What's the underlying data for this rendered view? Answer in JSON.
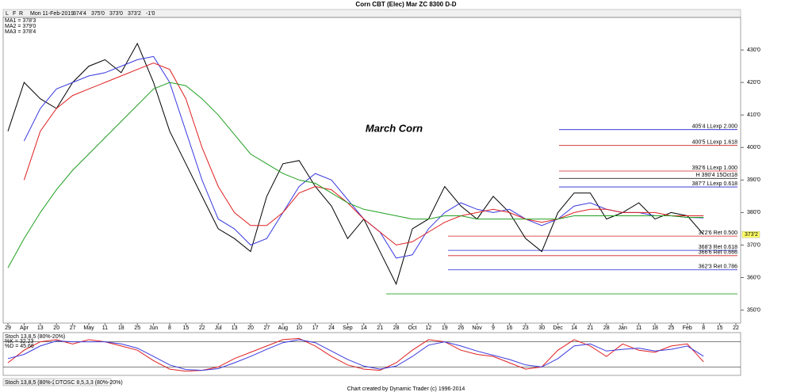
{
  "window_title": "Corn CBT (Elec) Mar ZC 8300 D-D",
  "toolbar": [
    "L",
    "F",
    "R"
  ],
  "quote": {
    "date": "Mon 11-Feb-2019",
    "open": "374'4",
    "high": "375'0",
    "low": "373'0",
    "close": "373'2",
    "change": "-1'0"
  },
  "footer": "Chart created by Dynamic Trader  (c) 1996-2014",
  "tabs": [
    "Stoch 13,8,5 (80%-20%)",
    "DTOSC 8,5,3,3 (80%-20%)"
  ],
  "chart_data": [
    {
      "type": "line",
      "annotation": "March Corn",
      "categories": [
        "29",
        "Apr",
        "13",
        "20",
        "27",
        "May",
        "11",
        "18",
        "25",
        "Jun",
        "8",
        "15",
        "22",
        "Jul",
        "13",
        "20",
        "27",
        "Aug",
        "10",
        "17",
        "24",
        "Sep",
        "14",
        "21",
        "28",
        "Oct",
        "12",
        "19",
        "26",
        "Nov",
        "9",
        "16",
        "23",
        "30",
        "Dec",
        "14",
        "21",
        "28",
        "Jan",
        "11",
        "18",
        "25",
        "Feb",
        "8",
        "15",
        "22"
      ],
      "ylim": [
        346,
        440
      ],
      "yticks": [
        {
          "value": 350,
          "label": "350'0"
        },
        {
          "value": 360,
          "label": "360'0"
        },
        {
          "value": 370,
          "label": "370'0"
        },
        {
          "value": 380,
          "label": "380'0"
        },
        {
          "value": 390,
          "label": "390'0"
        },
        {
          "value": 400,
          "label": "400'0"
        },
        {
          "value": 410,
          "label": "410'0"
        },
        {
          "value": 420,
          "label": "420'0"
        },
        {
          "value": 430,
          "label": "430'0"
        }
      ],
      "last": {
        "value": 373.25,
        "label": "373'2"
      },
      "series": [
        {
          "color": "#000000",
          "values": [
            405,
            420,
            415,
            412,
            420,
            425,
            427,
            423,
            432,
            420,
            405,
            395,
            385,
            375,
            372,
            368,
            385,
            395,
            396,
            388,
            382,
            372,
            378,
            368,
            358,
            375,
            378,
            388,
            382,
            378,
            385,
            380,
            372,
            368,
            380,
            386,
            386,
            378,
            380,
            383,
            378,
            380,
            379,
            373.25,
            null,
            null
          ]
        },
        {
          "name": "MA1 = 378'3",
          "color": "#3a3ae0",
          "values": [
            null,
            402,
            412,
            418,
            420,
            422,
            423,
            425,
            427,
            428,
            420,
            405,
            390,
            378,
            375,
            370,
            372,
            380,
            388,
            392,
            390,
            384,
            378,
            374,
            366,
            367,
            375,
            380,
            383,
            381,
            380,
            381,
            378,
            376,
            378,
            382,
            383,
            381,
            380,
            380,
            379,
            379,
            378.5,
            378.375,
            null,
            null
          ]
        },
        {
          "name": "MA2 = 379'0",
          "color": "#e02020",
          "values": [
            null,
            390,
            405,
            412,
            416,
            418,
            420,
            422,
            424,
            426,
            424,
            415,
            400,
            388,
            380,
            376,
            376,
            380,
            386,
            388,
            387,
            383,
            378,
            374,
            370,
            371,
            374,
            377,
            379,
            380,
            381,
            380,
            378,
            377,
            378,
            380,
            381,
            381,
            380,
            380,
            380,
            379,
            379,
            379,
            null,
            null
          ]
        },
        {
          "name": "MA3 = 378'4",
          "color": "#20a020",
          "values": [
            363,
            372,
            380,
            387,
            393,
            398,
            403,
            408,
            413,
            418,
            420,
            419,
            415,
            410,
            404,
            398,
            395,
            392,
            390,
            389,
            386,
            383,
            381,
            380,
            379,
            378,
            378,
            379,
            379,
            378,
            378,
            378,
            378,
            378,
            378,
            379,
            379,
            379,
            379,
            379,
            379,
            379,
            378.5,
            378.5,
            null,
            null
          ]
        }
      ],
      "levels": [
        {
          "label": "405'4 LLexp 2.000",
          "value": 405.5,
          "color": "#2020d0"
        },
        {
          "label": "400'5 LLexp 1.618",
          "value": 400.625,
          "color": "#d02020"
        },
        {
          "label": "392'6 LLexp 1.000",
          "value": 392.75,
          "color": "#d02020"
        },
        {
          "label": "H 390'4 15Oct18",
          "value": 390.5,
          "color": "#000000"
        },
        {
          "label": "387'7 LLexp 0.618",
          "value": 387.875,
          "color": "#2020d0"
        },
        {
          "label": "372'6 Ret 0.500",
          "value": 372.75,
          "color": "#d02020"
        },
        {
          "label": "368'3 Ret 0.618",
          "value": 368.375,
          "color": "#2020d0"
        },
        {
          "label": "366'6 Ret 0.666",
          "value": 366.75,
          "color": "#d02020"
        },
        {
          "label": "362'3 Ret 0.786",
          "value": 362.375,
          "color": "#2020d0"
        },
        {
          "value": 355,
          "color": "#20a020"
        }
      ]
    },
    {
      "type": "line",
      "title": "Stoch 13,8,5 (80%-20%)",
      "ylim": [
        0,
        100
      ],
      "levels": [
        20,
        80
      ],
      "series": [
        {
          "name": "%K = 32.23",
          "color": "#e02020",
          "values": [
            30,
            60,
            80,
            85,
            75,
            85,
            80,
            70,
            60,
            35,
            15,
            10,
            12,
            20,
            40,
            55,
            70,
            85,
            88,
            70,
            45,
            25,
            15,
            12,
            30,
            60,
            85,
            80,
            60,
            50,
            45,
            30,
            15,
            20,
            60,
            85,
            70,
            45,
            75,
            60,
            55,
            70,
            75,
            32.23,
            null,
            null
          ]
        },
        {
          "name": "%D = 45.66",
          "color": "#3a3ae0",
          "values": [
            40,
            50,
            70,
            82,
            80,
            80,
            80,
            75,
            65,
            45,
            25,
            14,
            12,
            16,
            30,
            45,
            62,
            78,
            85,
            78,
            58,
            38,
            22,
            15,
            22,
            45,
            72,
            80,
            70,
            58,
            48,
            38,
            25,
            20,
            40,
            70,
            75,
            58,
            62,
            65,
            58,
            62,
            70,
            45.66,
            null,
            null
          ]
        }
      ]
    }
  ]
}
